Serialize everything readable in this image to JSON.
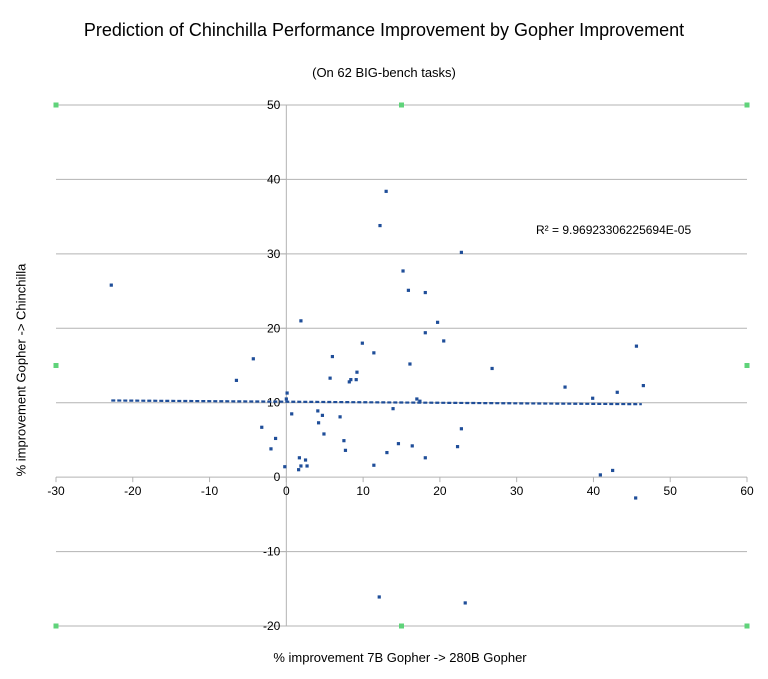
{
  "chart_data": {
    "type": "scatter",
    "title": "Prediction of Chinchilla Performance Improvement by Gopher Improvement",
    "subtitle": "(On 62 BIG-bench tasks)",
    "xlabel": "% improvement 7B Gopher -> 280B Gopher",
    "ylabel": "% improvement Gopher -> Chinchilla",
    "xlim": [
      -30,
      60
    ],
    "ylim": [
      -20,
      50
    ],
    "x_ticks": [
      -30,
      -20,
      -10,
      0,
      10,
      20,
      30,
      40,
      50,
      60
    ],
    "y_ticks": [
      -20,
      -10,
      0,
      10,
      20,
      30,
      40,
      50
    ],
    "grid": "horizontal",
    "marker_color": "#1f4e99",
    "trendline": {
      "type": "linear",
      "color": "#1f4e99",
      "x": [
        -22.8,
        46.3
      ],
      "y": [
        10.3,
        9.8
      ],
      "r_squared_label": "R² = 9.96923306225694E-05"
    },
    "points": [
      {
        "x": -22.8,
        "y": 25.8
      },
      {
        "x": -6.5,
        "y": 13.0
      },
      {
        "x": -4.3,
        "y": 15.9
      },
      {
        "x": -3.2,
        "y": 6.7
      },
      {
        "x": -2.0,
        "y": 3.8
      },
      {
        "x": -1.4,
        "y": 5.2
      },
      {
        "x": -0.2,
        "y": 1.4
      },
      {
        "x": 0.0,
        "y": 10.5
      },
      {
        "x": 0.1,
        "y": 11.3
      },
      {
        "x": 0.7,
        "y": 8.5
      },
      {
        "x": 1.6,
        "y": 1.0
      },
      {
        "x": 1.7,
        "y": 2.6
      },
      {
        "x": 1.9,
        "y": 1.5
      },
      {
        "x": 1.9,
        "y": 21.0
      },
      {
        "x": 2.5,
        "y": 2.3
      },
      {
        "x": 2.7,
        "y": 1.5
      },
      {
        "x": 4.1,
        "y": 8.9
      },
      {
        "x": 4.2,
        "y": 7.3
      },
      {
        "x": 4.7,
        "y": 8.3
      },
      {
        "x": 4.9,
        "y": 5.8
      },
      {
        "x": 5.7,
        "y": 13.3
      },
      {
        "x": 6.0,
        "y": 16.2
      },
      {
        "x": 7.0,
        "y": 8.1
      },
      {
        "x": 7.5,
        "y": 4.9
      },
      {
        "x": 7.7,
        "y": 3.6
      },
      {
        "x": 8.2,
        "y": 12.8
      },
      {
        "x": 8.4,
        "y": 13.1
      },
      {
        "x": 9.1,
        "y": 13.1
      },
      {
        "x": 9.2,
        "y": 14.1
      },
      {
        "x": 9.9,
        "y": 18.0
      },
      {
        "x": 11.4,
        "y": 16.7
      },
      {
        "x": 11.4,
        "y": 1.6
      },
      {
        "x": 12.2,
        "y": 33.8
      },
      {
        "x": 12.1,
        "y": -16.1
      },
      {
        "x": 13.0,
        "y": 38.4
      },
      {
        "x": 13.1,
        "y": 3.3
      },
      {
        "x": 13.9,
        "y": 9.2
      },
      {
        "x": 14.6,
        "y": 4.5
      },
      {
        "x": 15.2,
        "y": 27.7
      },
      {
        "x": 15.9,
        "y": 25.1
      },
      {
        "x": 16.1,
        "y": 15.2
      },
      {
        "x": 16.4,
        "y": 4.2
      },
      {
        "x": 17.0,
        "y": 10.5
      },
      {
        "x": 17.4,
        "y": 10.2
      },
      {
        "x": 18.1,
        "y": 19.4
      },
      {
        "x": 18.1,
        "y": 24.8
      },
      {
        "x": 18.1,
        "y": 2.6
      },
      {
        "x": 19.7,
        "y": 20.8
      },
      {
        "x": 20.5,
        "y": 18.3
      },
      {
        "x": 22.3,
        "y": 4.1
      },
      {
        "x": 22.8,
        "y": 30.2
      },
      {
        "x": 22.8,
        "y": 6.5
      },
      {
        "x": 23.3,
        "y": -16.9
      },
      {
        "x": 26.8,
        "y": 14.6
      },
      {
        "x": 36.3,
        "y": 12.1
      },
      {
        "x": 39.9,
        "y": 10.6
      },
      {
        "x": 40.9,
        "y": 0.3
      },
      {
        "x": 42.5,
        "y": 0.9
      },
      {
        "x": 43.1,
        "y": 11.4
      },
      {
        "x": 45.5,
        "y": -2.8
      },
      {
        "x": 45.6,
        "y": 17.6
      },
      {
        "x": 46.5,
        "y": 12.3
      }
    ]
  }
}
